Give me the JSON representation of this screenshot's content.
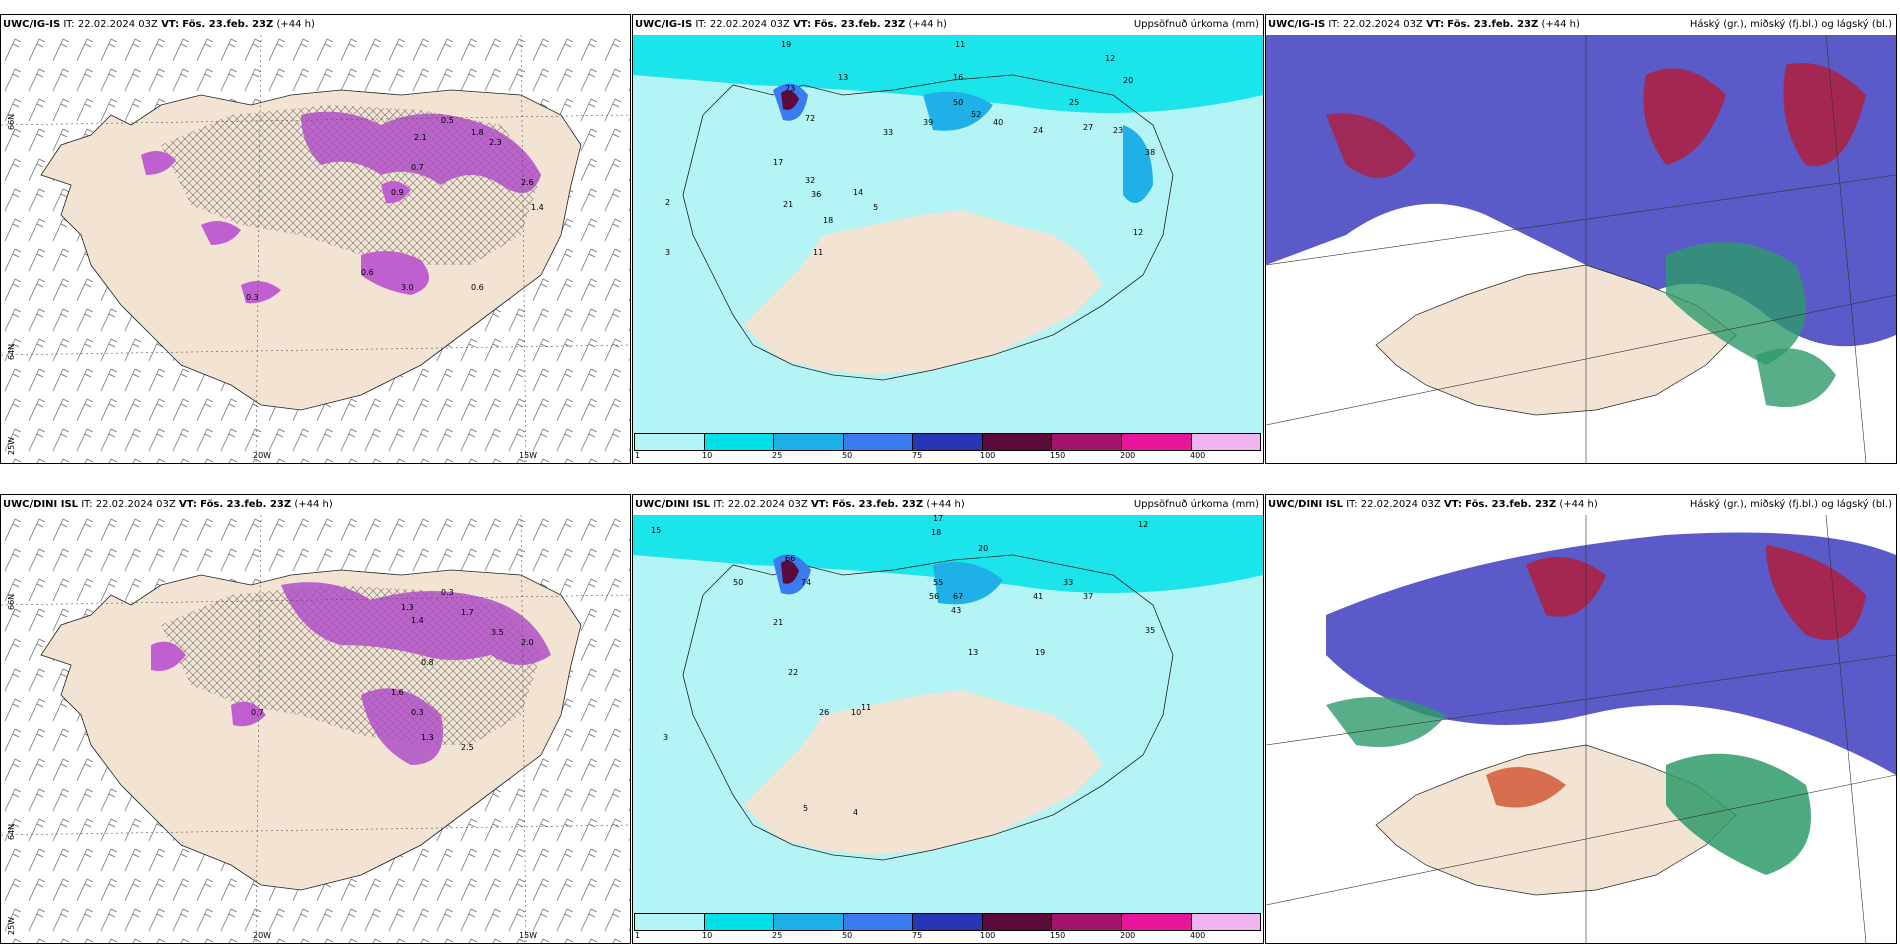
{
  "rows": [
    {
      "model": "UWC/IG-IS",
      "it_label": "IT:",
      "it_value": "22.02.2024 03Z",
      "vt_label": "VT:",
      "vt_value": "Fös. 23.feb. 23Z",
      "lead": "(+44 h)",
      "panel2_title_right": "Uppsöfnuð úrkoma (mm)",
      "panel3_title_right": "Háský (gr.), miðský (fj.bl.) og lágský (bl.)"
    },
    {
      "model": "UWC/DINI ISL",
      "it_label": "IT:",
      "it_value": "22.02.2024 03Z",
      "vt_label": "VT:",
      "vt_value": "Fös. 23.feb. 23Z",
      "lead": "(+44 h)",
      "panel2_title_right": "Uppsöfnuð úrkoma (mm)",
      "panel3_title_right": "Háský (gr.), miðský (fj.bl.) og lágský (bl.)"
    }
  ],
  "axes": {
    "lat_labels": [
      "66N",
      "64N",
      "25W"
    ],
    "lon_labels": [
      "20W",
      "15W"
    ]
  },
  "precip_scale": {
    "colors": [
      "#b4f4f4",
      "#00e0e8",
      "#1eb0e6",
      "#3a7cf0",
      "#2636b4",
      "#5c0a3a",
      "#a0146e",
      "#e8149a",
      "#f0b4f0"
    ],
    "labels": [
      "1",
      "10",
      "25",
      "50",
      "75",
      "100",
      "150",
      "200",
      "400"
    ]
  },
  "top_snow_labels": [
    "0.5",
    "2.1",
    "1.8",
    "2.3",
    "0.7",
    "2.6",
    "1.4",
    "3.0",
    "0.9",
    "0.6",
    "0.3",
    "0.6"
  ],
  "top_precip_values": [
    "19",
    "13",
    "11",
    "16",
    "12",
    "20",
    "73",
    "72",
    "33",
    "39",
    "50",
    "52",
    "40",
    "25",
    "27",
    "24",
    "23",
    "38",
    "32",
    "36",
    "17",
    "21",
    "14",
    "11",
    "18",
    "12",
    "5",
    "2",
    "3"
  ],
  "bottom_snow_labels": [
    "0.3",
    "1.3",
    "1.7",
    "1.4",
    "3.5",
    "0.8",
    "2.0",
    "1.6",
    "0.3",
    "1.3",
    "2.5",
    "0.7"
  ],
  "bottom_precip_values": [
    "15",
    "17",
    "18",
    "20",
    "12",
    "66",
    "74",
    "50",
    "55",
    "56",
    "67",
    "43",
    "41",
    "33",
    "37",
    "35",
    "21",
    "22",
    "19",
    "26",
    "13",
    "10",
    "11",
    "5",
    "4",
    "3"
  ]
}
